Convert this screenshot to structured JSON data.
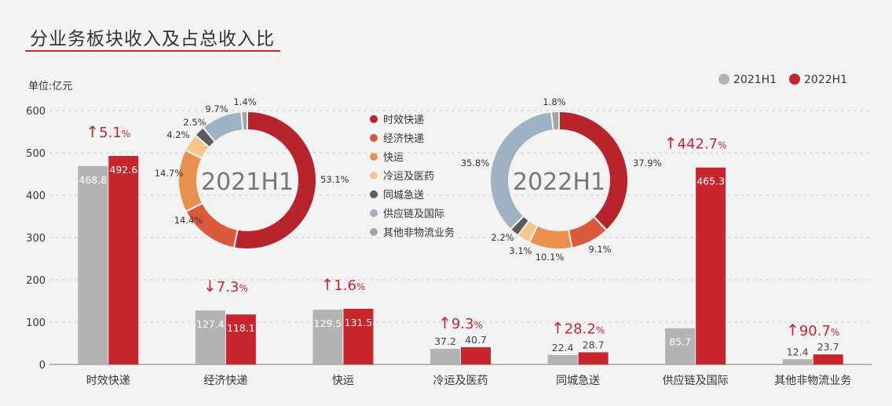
{
  "title": "分业务板块收入及占总收入比",
  "chart_data": [
    {
      "type": "bar",
      "unit_label": "单位:亿元",
      "categories": [
        "时效快递",
        "经济快递",
        "快运",
        "冷运及医药",
        "同城急送",
        "供应链及国际",
        "其他非物流业务"
      ],
      "ylim": [
        0,
        600
      ],
      "yticks": [
        0,
        100,
        200,
        300,
        400,
        500,
        600
      ],
      "grid": true,
      "legend_position": "top-right",
      "series": [
        {
          "name": "2021H1",
          "color": "#b3b3b3",
          "values": [
            468.8,
            127.4,
            129.5,
            37.2,
            22.4,
            85.7,
            12.4
          ]
        },
        {
          "name": "2022H1",
          "color": "#c8262d",
          "values": [
            492.6,
            118.1,
            131.5,
            40.7,
            28.7,
            465.3,
            23.7
          ]
        }
      ],
      "value_labels": {
        "2021H1": [
          "468.8",
          "127.4",
          "129.5",
          "37.2",
          "22.4",
          "85.7",
          "12.4"
        ],
        "2022H1": [
          "492.6",
          "118.1",
          "131.5",
          "40.7",
          "28.7",
          "465.3",
          "23.7"
        ]
      },
      "growth": [
        {
          "arrow": "↑",
          "value": "5.1",
          "unit": "%",
          "direction": "up"
        },
        {
          "arrow": "↓",
          "value": "7.3",
          "unit": "%",
          "direction": "down"
        },
        {
          "arrow": "↑",
          "value": "1.6",
          "unit": "%",
          "direction": "up"
        },
        {
          "arrow": "↑",
          "value": "9.3",
          "unit": "%",
          "direction": "up"
        },
        {
          "arrow": "↑",
          "value": "28.2",
          "unit": "%",
          "direction": "up"
        },
        {
          "arrow": "↑",
          "value": "442.7",
          "unit": "%",
          "direction": "up"
        },
        {
          "arrow": "↑",
          "value": "90.7",
          "unit": "%",
          "direction": "up"
        }
      ]
    },
    {
      "type": "pie",
      "style": "donut",
      "center_label": "2021H1",
      "slices": [
        {
          "label": "时效快递",
          "value": 53.1,
          "text": "53.1%",
          "color": "#b8242b"
        },
        {
          "label": "经济快递",
          "value": 14.4,
          "text": "14.4%",
          "color": "#dc5a3c"
        },
        {
          "label": "快运",
          "value": 14.7,
          "text": "14.7%",
          "color": "#e8914f"
        },
        {
          "label": "冷运及医药",
          "value": 4.2,
          "text": "4.2%",
          "color": "#f5c78c"
        },
        {
          "label": "同城急送",
          "value": 2.5,
          "text": "2.5%",
          "color": "#5b5b5b"
        },
        {
          "label": "供应链及国际",
          "value": 9.7,
          "text": "9.7%",
          "color": "#9fb2c4"
        },
        {
          "label": "其他非物流业务",
          "value": 1.4,
          "text": "1.4%",
          "color": "#a5a5a5"
        }
      ]
    },
    {
      "type": "pie",
      "style": "donut",
      "center_label": "2022H1",
      "slices": [
        {
          "label": "时效快递",
          "value": 37.9,
          "text": "37.9%",
          "color": "#b8242b"
        },
        {
          "label": "经济快递",
          "value": 9.1,
          "text": "9.1%",
          "color": "#dc5a3c"
        },
        {
          "label": "快运",
          "value": 10.1,
          "text": "10.1%",
          "color": "#e8914f"
        },
        {
          "label": "冷运及医药",
          "value": 3.1,
          "text": "3.1%",
          "color": "#f5c78c"
        },
        {
          "label": "同城急送",
          "value": 2.2,
          "text": "2.2%",
          "color": "#5b5b5b"
        },
        {
          "label": "供应链及国际",
          "value": 35.8,
          "text": "35.8%",
          "color": "#9fb2c4"
        },
        {
          "label": "其他非物流业务",
          "value": 1.8,
          "text": "1.8%",
          "color": "#a5a5a5"
        }
      ]
    }
  ],
  "donut_legend": [
    {
      "label": "时效快递",
      "color": "#b8242b"
    },
    {
      "label": "经济快递",
      "color": "#dc5a3c"
    },
    {
      "label": "快运",
      "color": "#e8914f"
    },
    {
      "label": "冷运及医药",
      "color": "#f5c78c"
    },
    {
      "label": "同城急送",
      "color": "#5b5b5b"
    },
    {
      "label": "供应链及国际",
      "color": "#9fb2c4"
    },
    {
      "label": "其他非物流业务",
      "color": "#a5a5a5"
    }
  ],
  "colors": {
    "accent": "#c8262d",
    "grey": "#b3b3b3",
    "axis_text": "#333333",
    "grid": "#cfcfcf"
  }
}
